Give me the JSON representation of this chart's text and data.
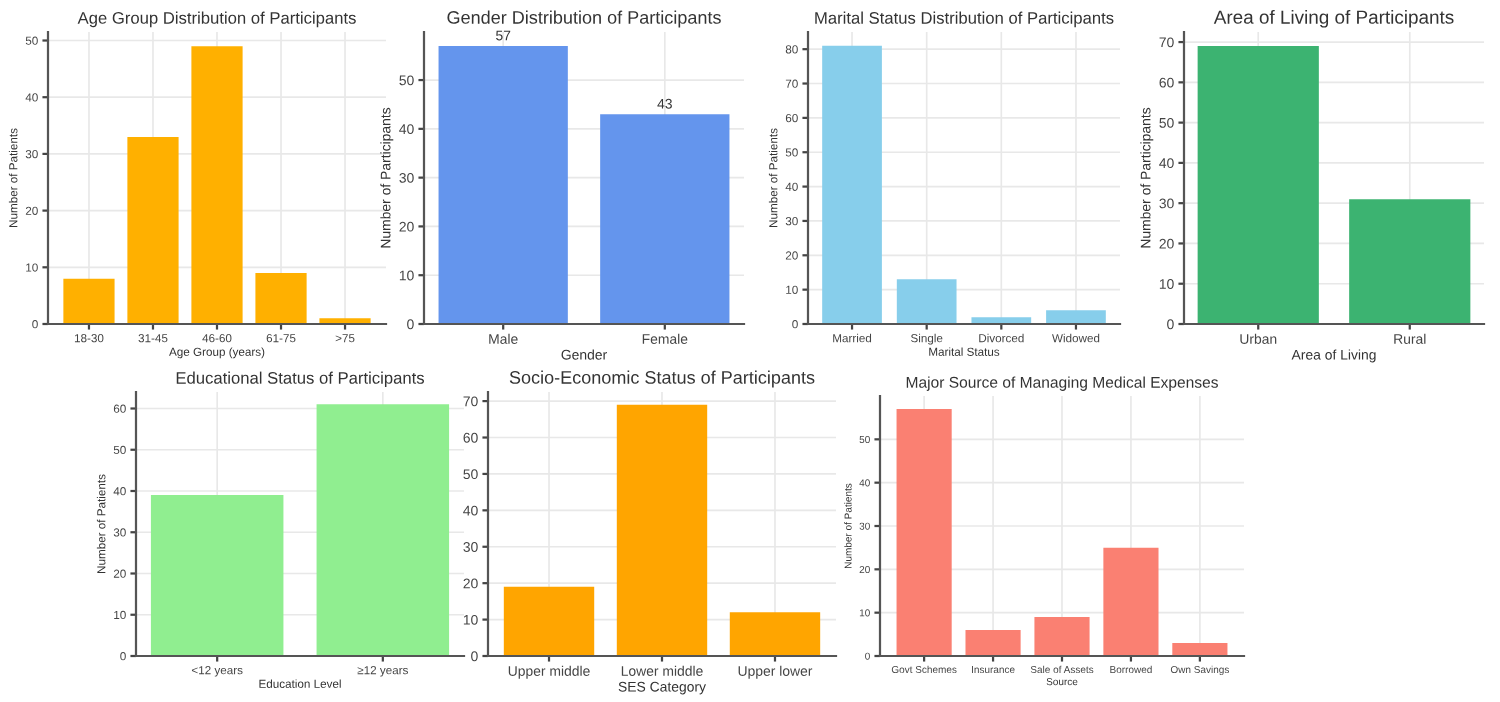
{
  "chart_data": [
    {
      "type": "bar",
      "title": "Age Group Distribution of Participants",
      "xlabel": "Age Group (years)",
      "ylabel": "Number of Patients",
      "categories": [
        "18-30",
        "31-45",
        "46-60",
        "61-75",
        ">75"
      ],
      "values": [
        8,
        33,
        49,
        9,
        1
      ],
      "color": "#ffb000",
      "ylim": [
        0,
        51.5
      ],
      "yticks": [
        0,
        10,
        20,
        30,
        40,
        50
      ],
      "grid": true
    },
    {
      "type": "bar",
      "title": "Gender Distribution of Participants",
      "xlabel": "Gender",
      "ylabel": "Number of Participants",
      "categories": [
        "Male",
        "Female"
      ],
      "values": [
        57,
        43
      ],
      "color": "#6495ed",
      "ylim": [
        0,
        59.85
      ],
      "yticks": [
        0,
        10,
        20,
        30,
        40,
        50
      ],
      "grid": true,
      "data_labels": true
    },
    {
      "type": "bar",
      "title": "Marital Status Distribution of Participants",
      "xlabel": "Marital Status",
      "ylabel": "Number of Patients",
      "categories": [
        "Married",
        "Single",
        "Divorced",
        "Widowed"
      ],
      "values": [
        81,
        13,
        2,
        4
      ],
      "color": "#87ceeb",
      "ylim": [
        0,
        85
      ],
      "yticks": [
        0,
        10,
        20,
        30,
        40,
        50,
        60,
        70,
        80
      ],
      "grid": true
    },
    {
      "type": "bar",
      "title": "Area of Living of Participants",
      "xlabel": "Area of Living",
      "ylabel": "Number of Participants",
      "categories": [
        "Urban",
        "Rural"
      ],
      "values": [
        69,
        31
      ],
      "color": "#3cb371",
      "ylim": [
        0,
        72.5
      ],
      "yticks": [
        0,
        10,
        20,
        30,
        40,
        50,
        60,
        70
      ],
      "grid": true
    },
    {
      "type": "bar",
      "title": "Educational Status of Participants",
      "xlabel": "Education Level",
      "ylabel": "Number of Patients",
      "categories": [
        "<12 years",
        "≥12 years"
      ],
      "values": [
        39,
        61
      ],
      "color": "#90ee90",
      "ylim": [
        0,
        64
      ],
      "yticks": [
        0,
        10,
        20,
        30,
        40,
        50,
        60
      ],
      "grid": true
    },
    {
      "type": "bar",
      "title": "Socio-Economic Status of Participants",
      "xlabel": "SES Category",
      "categories": [
        "Upper middle",
        "Lower middle",
        "Upper lower"
      ],
      "values": [
        19,
        69,
        12
      ],
      "color": "#ffa500",
      "ylim": [
        0,
        72.5
      ],
      "yticks": [
        0,
        10,
        20,
        30,
        40,
        50,
        60,
        70
      ],
      "grid": true
    },
    {
      "type": "bar",
      "title": "Major Source of Managing Medical Expenses",
      "xlabel": "Source",
      "ylabel": "Number of Patients",
      "categories": [
        "Govt Schemes",
        "Insurance",
        "Sale of Assets",
        "Borrowed",
        "Own Savings"
      ],
      "values": [
        57,
        6,
        9,
        25,
        3
      ],
      "color": "#fa8072",
      "ylim": [
        0,
        60
      ],
      "yticks": [
        0,
        10,
        20,
        30,
        40,
        50
      ],
      "grid": true
    }
  ]
}
